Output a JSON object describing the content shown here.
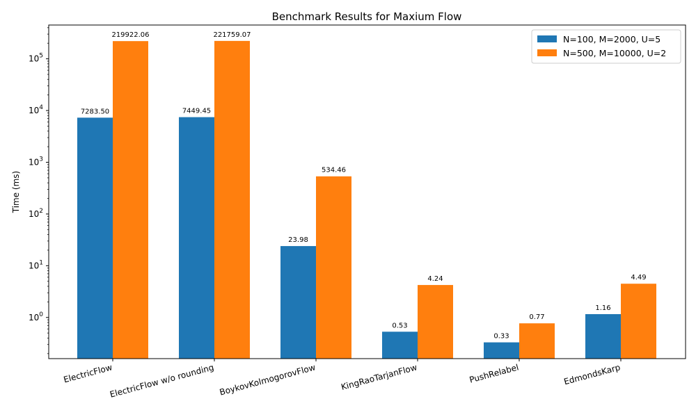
{
  "chart_data": {
    "type": "bar",
    "title": "Benchmark Results for Maxium Flow",
    "xlabel": "",
    "ylabel": "Time (ms)",
    "yscale": "log",
    "ylim": [
      0.16,
      450000
    ],
    "yticks": [
      {
        "value": 1,
        "base": "10",
        "exp": "0"
      },
      {
        "value": 10,
        "base": "10",
        "exp": "1"
      },
      {
        "value": 100,
        "base": "10",
        "exp": "2"
      },
      {
        "value": 1000,
        "base": "10",
        "exp": "3"
      },
      {
        "value": 10000,
        "base": "10",
        "exp": "4"
      },
      {
        "value": 100000,
        "base": "10",
        "exp": "5"
      }
    ],
    "grid": false,
    "legend_position": "top-right",
    "categories": [
      "ElectricFlow",
      "ElectricFlow w/o rounding",
      "BoykovKolmogorovFlow",
      "KingRaoTarjanFlow",
      "PushRelabel",
      "EdmondsKarp"
    ],
    "series": [
      {
        "name": "N=100, M=2000, U=5",
        "color": "#1f77b4",
        "values": [
          7283.5,
          7449.45,
          23.98,
          0.53,
          0.33,
          1.16
        ],
        "labels": [
          "7283.50",
          "7449.45",
          "23.98",
          "0.53",
          "0.33",
          "1.16"
        ]
      },
      {
        "name": "N=500, M=10000, U=2",
        "color": "#ff7f0e",
        "values": [
          219922.06,
          221759.07,
          534.46,
          4.24,
          0.77,
          4.49
        ],
        "labels": [
          "219922.06",
          "221759.07",
          "534.46",
          "4.24",
          "0.77",
          "4.49"
        ]
      }
    ]
  }
}
